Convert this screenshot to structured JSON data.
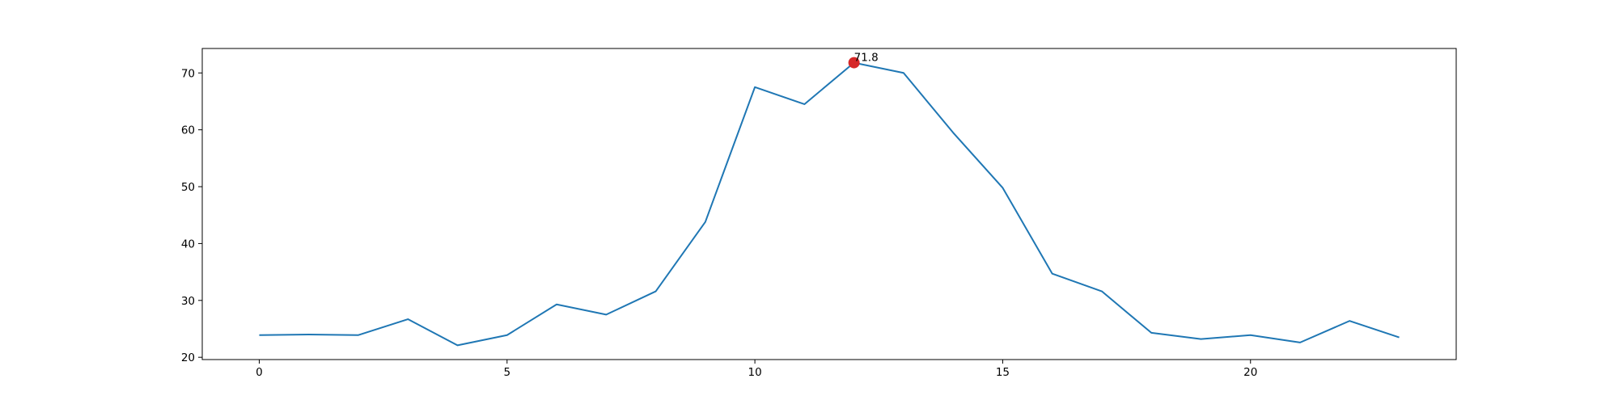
{
  "chart_data": {
    "type": "line",
    "title": "",
    "xlabel": "",
    "ylabel": "",
    "x": [
      0,
      1,
      2,
      3,
      4,
      5,
      6,
      7,
      8,
      9,
      10,
      11,
      12,
      13,
      14,
      15,
      16,
      17,
      18,
      19,
      20,
      21,
      22,
      23
    ],
    "series": [
      {
        "values": [
          23.9,
          24.0,
          23.9,
          26.7,
          22.1,
          23.9,
          29.3,
          27.5,
          31.6,
          43.8,
          67.5,
          64.5,
          71.8,
          70.0,
          59.5,
          49.8,
          34.7,
          31.6,
          24.3,
          23.2,
          23.9,
          22.6,
          26.4,
          23.5
        ],
        "color": "#1f77b4"
      }
    ],
    "highlight": {
      "x": 12,
      "y": 71.8,
      "label": "71.8",
      "color": "#d62728"
    },
    "xticks": [
      0,
      5,
      10,
      15,
      20
    ],
    "yticks": [
      20,
      30,
      40,
      50,
      60,
      70
    ],
    "xlim": [
      -1.15,
      24.15
    ],
    "ylim": [
      19.6,
      74.3
    ],
    "grid": false,
    "legend": "none"
  }
}
